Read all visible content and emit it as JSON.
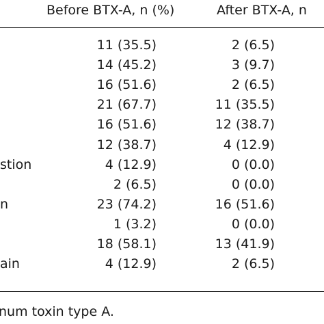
{
  "table": {
    "headers": {
      "before": "Before BTX-A, n (%)",
      "after": "After BTX-A, n"
    },
    "rows": [
      {
        "label": "",
        "before": "11 (35.5)",
        "after": "2 (6.5)"
      },
      {
        "label": "",
        "before": "14 (45.2)",
        "after": "3 (9.7)"
      },
      {
        "label": "",
        "before": "16 (51.6)",
        "after": "2 (6.5)"
      },
      {
        "label": "",
        "before": "21 (67.7)",
        "after": "11 (35.5)"
      },
      {
        "label": "",
        "before": "16 (51.6)",
        "after": "12 (38.7)"
      },
      {
        "label": "",
        "before": "12 (38.7)",
        "after": "4 (12.9)"
      },
      {
        "label": "stion",
        "before": "4 (12.9)",
        "after": "0 (0.0)"
      },
      {
        "label": "",
        "before": "2 (6.5)",
        "after": "0 (0.0)"
      },
      {
        "label": "n",
        "before": "23 (74.2)",
        "after": "16 (51.6)"
      },
      {
        "label": "",
        "before": "1 (3.2)",
        "after": "0 (0.0)"
      },
      {
        "label": "",
        "before": "18 (58.1)",
        "after": "13 (41.9)"
      },
      {
        "label": "ain",
        "before": "4 (12.9)",
        "after": "2 (6.5)"
      }
    ]
  },
  "footnote": "num toxin type A."
}
